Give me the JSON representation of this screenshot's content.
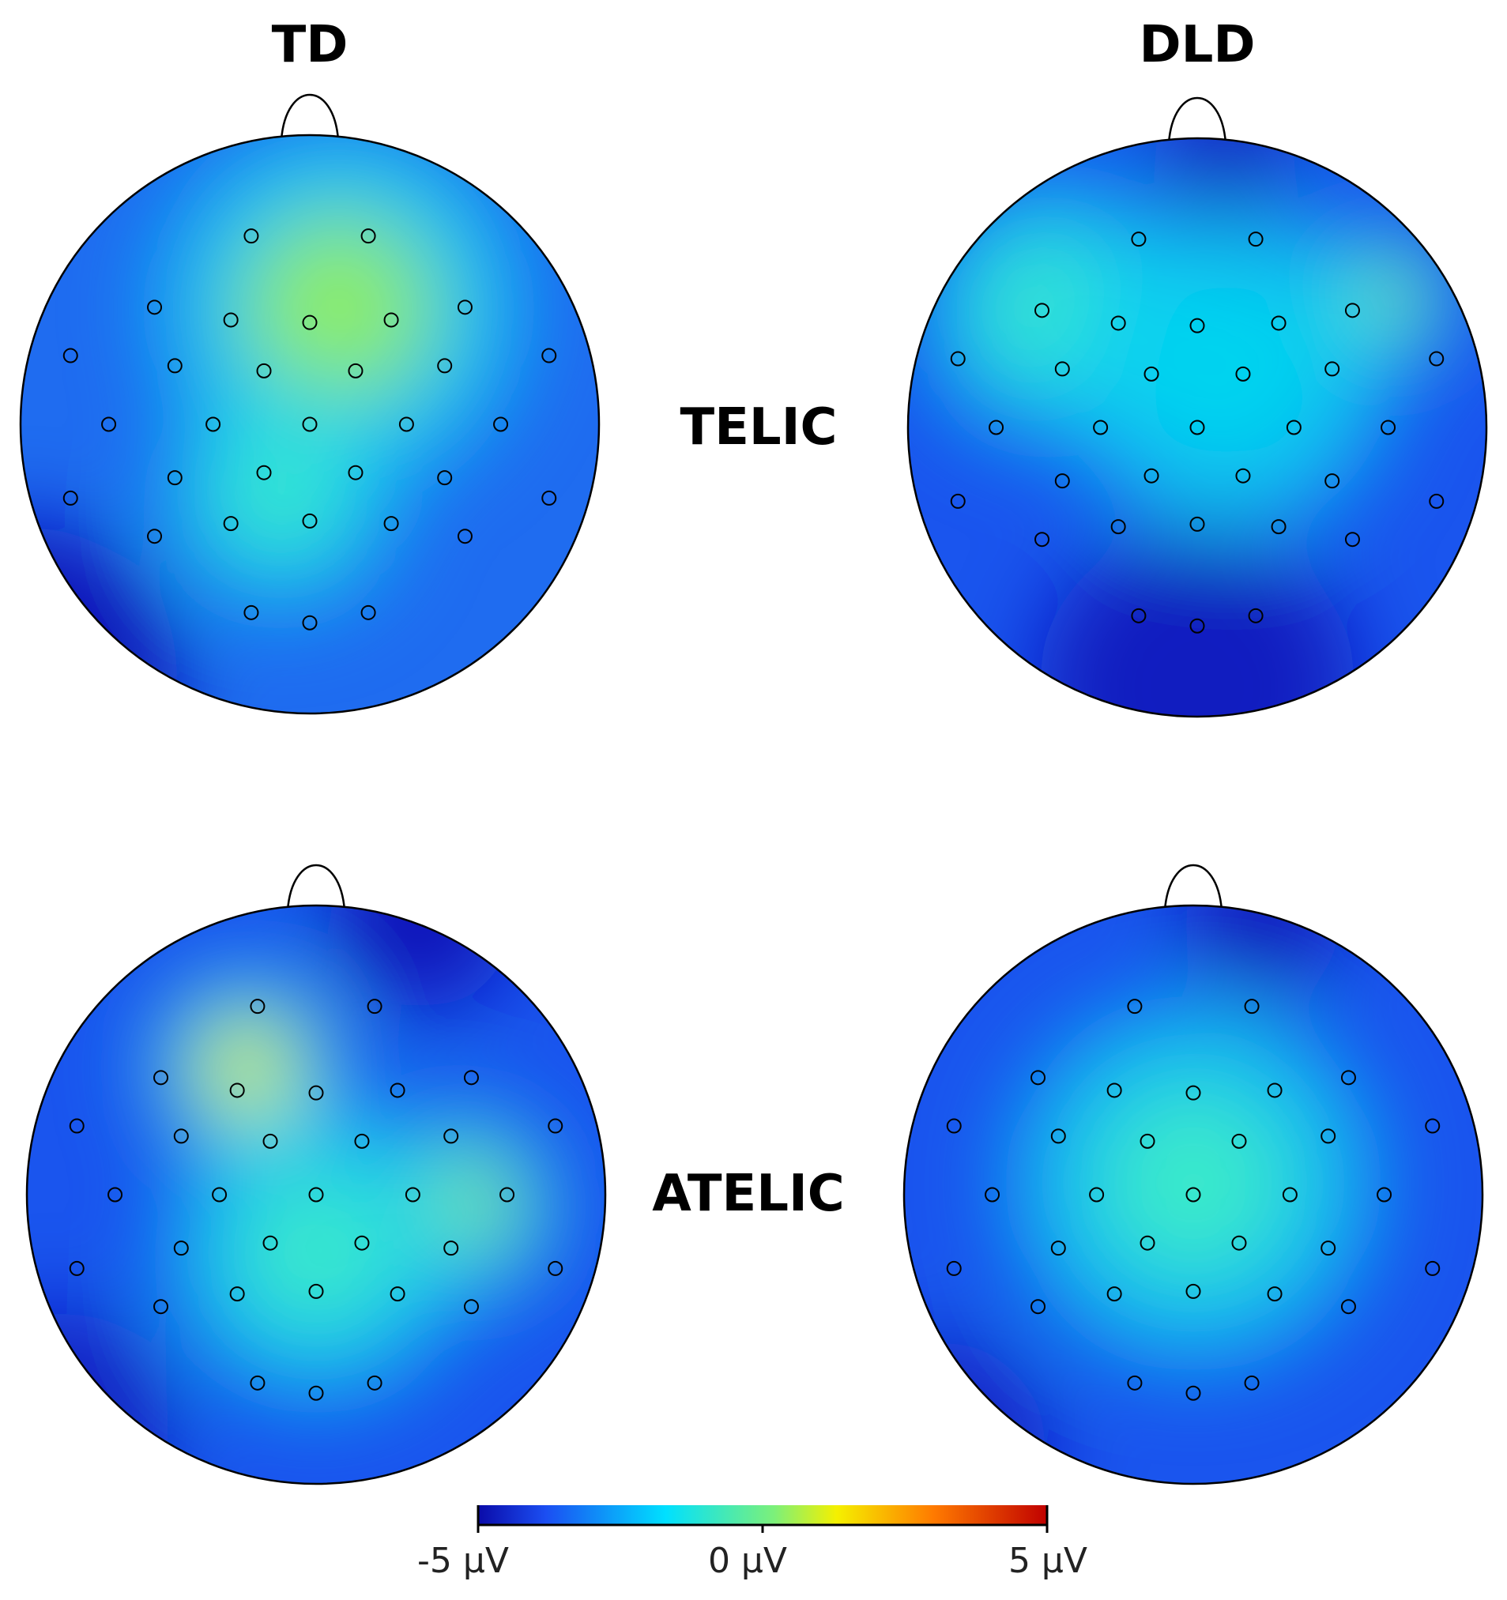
{
  "columns": [
    "TD",
    "DLD"
  ],
  "rows": [
    "TELIC",
    "ATELIC"
  ],
  "colorbar": {
    "ticks": [
      "-5 µV",
      "0 µV",
      "5 µV"
    ],
    "colors": [
      "#0a0aa8",
      "#1b4ef2",
      "#00e0ff",
      "#7cf07a",
      "#f5f000",
      "#ff7a00",
      "#c00000"
    ]
  },
  "maps": [
    {
      "group": "TD",
      "condition": "TELIC",
      "blobs": [
        {
          "u": 0.55,
          "v": 0.3,
          "r": 0.55,
          "val": 0.55
        },
        {
          "u": 0.45,
          "v": 0.62,
          "r": 0.35,
          "val": 0.35
        }
      ],
      "lows": [
        {
          "u": 0.0,
          "v": 0.95,
          "r": 0.55,
          "val": 0.9
        }
      ],
      "base": 0.2
    },
    {
      "group": "DLD",
      "condition": "TELIC",
      "blobs": [
        {
          "u": 0.82,
          "v": 0.28,
          "r": 0.22,
          "val": 0.7
        },
        {
          "u": 0.25,
          "v": 0.3,
          "r": 0.4,
          "val": 0.35
        },
        {
          "u": 0.55,
          "v": 0.4,
          "r": 0.5,
          "val": 0.3
        }
      ],
      "lows": [
        {
          "u": 0.5,
          "v": 0.95,
          "r": 0.55,
          "val": 0.5
        },
        {
          "u": 0.55,
          "v": 0.02,
          "r": 0.25,
          "val": 0.35
        }
      ],
      "base": 0.1
    },
    {
      "group": "TD",
      "condition": "ATELIC",
      "blobs": [
        {
          "u": 0.38,
          "v": 0.28,
          "r": 0.3,
          "val": 0.85
        },
        {
          "u": 0.75,
          "v": 0.52,
          "r": 0.3,
          "val": 0.6
        },
        {
          "u": 0.5,
          "v": 0.6,
          "r": 0.45,
          "val": 0.35
        }
      ],
      "lows": [
        {
          "u": 0.68,
          "v": 0.02,
          "r": 0.32,
          "val": 0.8
        },
        {
          "u": 0.05,
          "v": 0.9,
          "r": 0.4,
          "val": 0.4
        }
      ],
      "base": 0.15
    },
    {
      "group": "DLD",
      "condition": "ATELIC",
      "blobs": [
        {
          "u": 0.5,
          "v": 0.48,
          "r": 0.55,
          "val": 0.45
        }
      ],
      "lows": [
        {
          "u": 0.62,
          "v": 0.02,
          "r": 0.28,
          "val": 0.6
        },
        {
          "u": 0.05,
          "v": 0.95,
          "r": 0.4,
          "val": 0.35
        }
      ],
      "base": 0.05
    }
  ],
  "electrodes": [
    [
      -0.23,
      -0.74
    ],
    [
      0.23,
      -0.74
    ],
    [
      -0.61,
      -0.46
    ],
    [
      -0.31,
      -0.41
    ],
    [
      0.0,
      -0.4
    ],
    [
      0.32,
      -0.41
    ],
    [
      0.61,
      -0.46
    ],
    [
      -0.94,
      -0.27
    ],
    [
      0.94,
      -0.27
    ],
    [
      -0.53,
      -0.23
    ],
    [
      -0.18,
      -0.21
    ],
    [
      0.18,
      -0.21
    ],
    [
      0.53,
      -0.23
    ],
    [
      -0.79,
      0.0
    ],
    [
      -0.38,
      0.0
    ],
    [
      0.0,
      0.0
    ],
    [
      0.38,
      0.0
    ],
    [
      0.75,
      0.0
    ],
    [
      -0.53,
      0.21
    ],
    [
      -0.18,
      0.19
    ],
    [
      0.18,
      0.19
    ],
    [
      0.53,
      0.21
    ],
    [
      -0.94,
      0.29
    ],
    [
      0.94,
      0.29
    ],
    [
      -0.61,
      0.44
    ],
    [
      -0.31,
      0.39
    ],
    [
      0.0,
      0.38
    ],
    [
      0.32,
      0.39
    ],
    [
      0.61,
      0.44
    ],
    [
      -0.23,
      0.74
    ],
    [
      0.0,
      0.78
    ],
    [
      0.23,
      0.74
    ]
  ]
}
